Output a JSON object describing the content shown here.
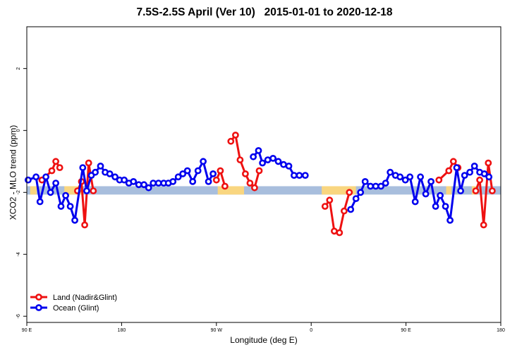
{
  "chart_data": {
    "type": "line",
    "title": "7.5S-2.5S April (Ver 10)   2015-01-01 to 2020-12-18",
    "xlabel": "Longitude (deg E)",
    "ylabel": "XCO2 - MLO trend (ppm)",
    "xlim": [
      90,
      450
    ],
    "ylim": [
      -6.2,
      3.35
    ],
    "x_ticks": [
      {
        "value": 90,
        "label": "90 E"
      },
      {
        "value": 162,
        "label": "180"
      },
      {
        "value": 234,
        "label": "90 W"
      },
      {
        "value": 306,
        "label": "0"
      },
      {
        "value": 378,
        "label": "90 E"
      },
      {
        "value": 450,
        "label": "180"
      }
    ],
    "y_ticks": [
      {
        "value": 2,
        "label": "2"
      },
      {
        "value": 0,
        "label": "0"
      },
      {
        "value": -2,
        "label": "-2"
      },
      {
        "value": -4,
        "label": "-4"
      },
      {
        "value": -6,
        "label": "-6"
      }
    ],
    "legend": {
      "position": "bottom-left",
      "entries": [
        {
          "label": "Land (Nadir&Glint)",
          "color": "#ee1111"
        },
        {
          "label": "Ocean (Glint)",
          "color": "#0000ee"
        }
      ]
    },
    "band": {
      "y_low": -2.07,
      "y_high": -1.8,
      "color_ocean": "#a8bedd",
      "color_land": "#f9d680",
      "land_segments": [
        [
          92.5,
          97.5
        ],
        [
          118.5,
          132.5
        ],
        [
          235,
          255
        ],
        [
          314,
          340
        ],
        [
          408.5,
          412.5
        ],
        [
          428,
          432
        ]
      ]
    },
    "series": [
      {
        "name": "Land (Nadir&Glint)",
        "color": "#ee1111",
        "segments": [
          [
            [
              101.5,
              -1.6
            ],
            [
              109,
              -1.3
            ],
            [
              112,
              -1.0
            ],
            [
              115,
              -1.2
            ]
          ],
          [
            [
              128.5,
              -1.95
            ],
            [
              131.5,
              -1.65
            ],
            [
              134,
              -3.05
            ],
            [
              137,
              -1.05
            ],
            [
              140.5,
              -1.95
            ]
          ],
          [
            [
              234,
              -1.6
            ],
            [
              237,
              -1.3
            ],
            [
              240.5,
              -1.8
            ]
          ],
          [
            [
              245,
              -0.35
            ],
            [
              248.5,
              -0.15
            ],
            [
              252,
              -0.95
            ],
            [
              256,
              -1.4
            ],
            [
              259.5,
              -1.7
            ],
            [
              263,
              -1.85
            ],
            [
              266.5,
              -1.3
            ]
          ],
          [
            [
              316.5,
              -2.45
            ],
            [
              320,
              -2.25
            ],
            [
              323.5,
              -3.25
            ],
            [
              327.5,
              -3.3
            ],
            [
              331,
              -2.6
            ],
            [
              335,
              -2.0
            ]
          ],
          [
            [
              403,
              -1.6
            ],
            [
              410.5,
              -1.3
            ],
            [
              414,
              -1.0
            ],
            [
              417.5,
              -1.2
            ]
          ],
          [
            [
              431,
              -1.95
            ],
            [
              434,
              -1.6
            ],
            [
              437,
              -3.05
            ],
            [
              440.5,
              -1.05
            ],
            [
              443.5,
              -1.95
            ]
          ]
        ]
      },
      {
        "name": "Ocean (Glint)",
        "color": "#0000ee",
        "segments": [
          [
            [
              91,
              -1.6
            ],
            [
              97,
              -1.5
            ],
            [
              100,
              -2.3
            ],
            [
              104.5,
              -1.5
            ],
            [
              108,
              -2.0
            ],
            [
              112,
              -1.7
            ],
            [
              116,
              -2.45
            ],
            [
              119.5,
              -2.1
            ],
            [
              123,
              -2.45
            ],
            [
              126.5,
              -2.9
            ],
            [
              132.5,
              -1.2
            ],
            [
              135.5,
              -1.95
            ],
            [
              139,
              -1.45
            ],
            [
              142,
              -1.35
            ],
            [
              146,
              -1.15
            ],
            [
              149.5,
              -1.35
            ],
            [
              153,
              -1.4
            ],
            [
              157,
              -1.5
            ],
            [
              160.5,
              -1.6
            ],
            [
              164,
              -1.6
            ],
            [
              167.5,
              -1.7
            ],
            [
              171,
              -1.65
            ],
            [
              175,
              -1.75
            ],
            [
              179,
              -1.75
            ],
            [
              182.5,
              -1.85
            ],
            [
              186,
              -1.7
            ],
            [
              190,
              -1.7
            ],
            [
              194,
              -1.7
            ],
            [
              197.5,
              -1.7
            ],
            [
              201,
              -1.65
            ],
            [
              205,
              -1.5
            ],
            [
              208.5,
              -1.4
            ],
            [
              212,
              -1.3
            ],
            [
              216,
              -1.65
            ],
            [
              220,
              -1.3
            ],
            [
              224,
              -1.0
            ],
            [
              228,
              -1.65
            ],
            [
              231.5,
              -1.4
            ]
          ],
          [
            [
              262,
              -0.85
            ],
            [
              266,
              -0.65
            ],
            [
              269,
              -1.05
            ],
            [
              273,
              -0.95
            ],
            [
              277,
              -0.9
            ],
            [
              281,
              -1.0
            ],
            [
              285,
              -1.1
            ],
            [
              289,
              -1.15
            ],
            [
              293,
              -1.45
            ],
            [
              297,
              -1.45
            ],
            [
              301.5,
              -1.45
            ]
          ],
          [
            [
              336,
              -2.55
            ],
            [
              340,
              -2.2
            ],
            [
              343.5,
              -2.0
            ],
            [
              347,
              -1.65
            ],
            [
              351,
              -1.8
            ],
            [
              355,
              -1.8
            ],
            [
              359,
              -1.8
            ],
            [
              362.5,
              -1.7
            ],
            [
              366,
              -1.35
            ],
            [
              370,
              -1.45
            ],
            [
              373.5,
              -1.5
            ],
            [
              377.5,
              -1.6
            ],
            [
              381,
              -1.5
            ],
            [
              385,
              -2.3
            ],
            [
              389,
              -1.5
            ],
            [
              393,
              -2.05
            ],
            [
              397,
              -1.65
            ],
            [
              400.5,
              -2.45
            ],
            [
              404,
              -2.1
            ],
            [
              408,
              -2.45
            ],
            [
              411.5,
              -2.9
            ],
            [
              416.5,
              -1.2
            ],
            [
              419.5,
              -1.95
            ],
            [
              422.5,
              -1.45
            ],
            [
              426.5,
              -1.35
            ],
            [
              430,
              -1.15
            ],
            [
              434,
              -1.35
            ],
            [
              437.5,
              -1.4
            ],
            [
              441,
              -1.5
            ]
          ]
        ]
      }
    ]
  }
}
